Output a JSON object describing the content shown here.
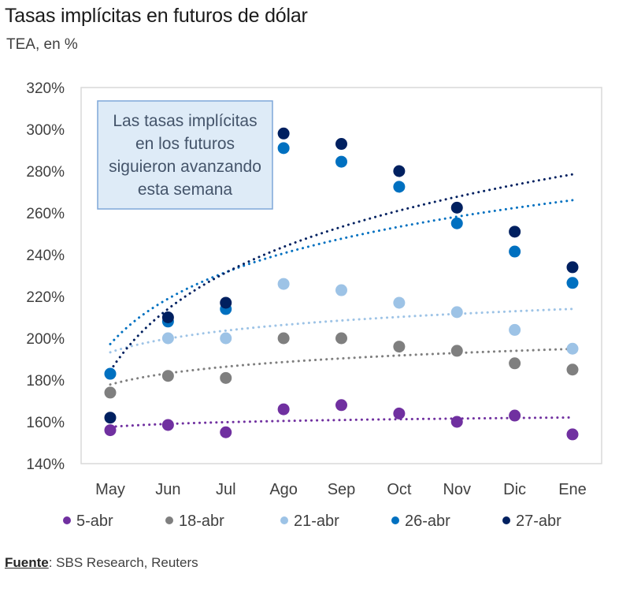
{
  "chart_data": {
    "type": "scatter",
    "title": "Tasas implícitas en futuros de dólar",
    "subtitle": "TEA, en %",
    "xlabel": "",
    "ylabel": "TEA, en %",
    "categories": [
      "May",
      "Jun",
      "Jul",
      "Ago",
      "Sep",
      "Oct",
      "Nov",
      "Dic",
      "Ene"
    ],
    "ylim": [
      140,
      320
    ],
    "yticks": [
      140,
      160,
      180,
      200,
      220,
      240,
      260,
      280,
      300,
      320
    ],
    "ytick_suffix": "%",
    "grid": false,
    "legend_position": "bottom",
    "trendline": "logarithmic (dotted, one per series)",
    "series": [
      {
        "name": "5-abr",
        "color": "#7030A0",
        "values": [
          156,
          158.5,
          155,
          166,
          168,
          164,
          160,
          163,
          154
        ]
      },
      {
        "name": "18-abr",
        "color": "#7F7F7F",
        "values": [
          174,
          182,
          181,
          200,
          200,
          196,
          194,
          188,
          185
        ]
      },
      {
        "name": "21-abr",
        "color": "#9DC3E6",
        "values": [
          183,
          200,
          200,
          226,
          223,
          217,
          212.5,
          204,
          195
        ]
      },
      {
        "name": "26-abr",
        "color": "#0070C0",
        "values": [
          183,
          208,
          214,
          291,
          284.5,
          272.5,
          255,
          241.5,
          226.5
        ]
      },
      {
        "name": "27-abr",
        "color": "#002060",
        "values": [
          162,
          210,
          217,
          298,
          293,
          280,
          262.5,
          251,
          234
        ]
      }
    ],
    "annotation": {
      "lines": [
        "Las tasas implícitas",
        "en los futuros",
        "siguieron avanzando",
        "esta semana"
      ]
    }
  },
  "source": {
    "label": "Fuente",
    "text": ": SBS Research, Reuters"
  }
}
